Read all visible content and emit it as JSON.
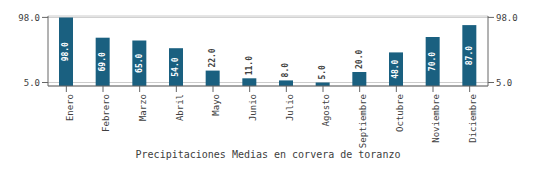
{
  "chart_data": {
    "type": "bar",
    "title": "Precipitaciones Medias en corvera de toranzo",
    "categories": [
      "Enero",
      "Febrero",
      "Marzo",
      "Abril",
      "Mayo",
      "Junio",
      "Julio",
      "Agosto",
      "Septiembre",
      "Octubre",
      "Noviembre",
      "Diciembre"
    ],
    "values": [
      98.0,
      69.0,
      65.0,
      54.0,
      22.0,
      11.0,
      8.0,
      5.0,
      20.0,
      48.0,
      70.0,
      87.0
    ],
    "value_labels": [
      "98.0",
      "69.0",
      "65.0",
      "54.0",
      "22.0",
      "11.0",
      "8.0",
      "5.0",
      "20.0",
      "48.0",
      "70.0",
      "87.0"
    ],
    "color": "#1a6080",
    "ylim": [
      0,
      100
    ],
    "yticks": [
      {
        "value": 5,
        "label": "5.0"
      },
      {
        "value": 98,
        "label": "98.0"
      }
    ],
    "y2lim": [
      0,
      100
    ],
    "y2ticks": [
      {
        "value": 5,
        "label": "5.0"
      },
      {
        "value": 98,
        "label": "98.0"
      }
    ],
    "grid": true,
    "data_labels": true
  }
}
